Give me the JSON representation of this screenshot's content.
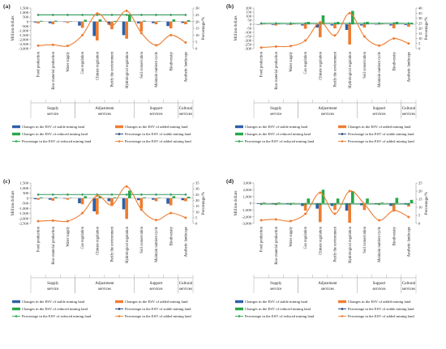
{
  "categories": [
    "Food production",
    "Raw material production",
    "Water supply",
    "Gas regulation",
    "Climate regulation",
    "Purify the environment",
    "Hydrological regulation",
    "Soil conservation",
    "Maintain nutrient cycle",
    "Biodiversity",
    "Aesthetic landscape"
  ],
  "groups": [
    {
      "label": [
        "Supply",
        "service"
      ],
      "span": [
        0,
        2
      ]
    },
    {
      "label": [
        "Adjustment",
        "services"
      ],
      "span": [
        3,
        6
      ]
    },
    {
      "label": [
        "Support",
        "services"
      ],
      "span": [
        7,
        9
      ]
    },
    {
      "label": [
        "Cultural",
        "services"
      ],
      "span": [
        10,
        10
      ]
    }
  ],
  "legend": {
    "stable": "Changes in the ESV of stable mining land",
    "added": "Changes in the ESV of added mining land",
    "reduced": "Changes in the ESV of reduced mining land",
    "pct_stable": "Percentage in the ESV of stable mining land",
    "pct_reduced": "Percentage in the ESV of reduced mining land",
    "pct_added": "Percentage in the ESV of added mining land"
  },
  "colors": {
    "stable": "#2e5fa8",
    "added": "#ee7d31",
    "reduced": "#27a84a",
    "pct_stable": "#1f3f7a"
  },
  "chart_data": [
    {
      "type": "bar",
      "panel_label": "(a)",
      "ylabel": "Million dollars",
      "y2label": "Percentage/%",
      "ylim": [
        -3000,
        1500
      ],
      "y_ticks": [
        -3000,
        -2500,
        -2000,
        -1500,
        -1000,
        -500,
        0,
        500,
        1000,
        1500
      ],
      "y_tick_labels": [
        "-3,000",
        "-2,500",
        "-2,000",
        "-1,500",
        "-1,000",
        "-500",
        "0",
        "500",
        "1,000",
        "1,500"
      ],
      "y2lim": [
        0,
        30
      ],
      "y2_ticks": [
        0,
        5,
        10,
        15,
        20,
        25,
        30
      ],
      "series": [
        {
          "name": "Changes in the ESV of stable mining land",
          "values": [
            -100,
            -180,
            -50,
            -450,
            -1600,
            -350,
            -1500,
            -200,
            -170,
            -500,
            -150
          ]
        },
        {
          "name": "Changes in the ESV of added mining land",
          "values": [
            -200,
            -300,
            -150,
            -700,
            -2100,
            -850,
            -1900,
            -1100,
            -300,
            -750,
            -300
          ]
        },
        {
          "name": "Changes in the ESV of reduced mining land",
          "values": [
            80,
            100,
            40,
            200,
            250,
            80,
            800,
            100,
            50,
            250,
            150
          ]
        },
        {
          "name": "Percentage in the ESV of stable mining land",
          "values": [
            25,
            25,
            25,
            25,
            25,
            25,
            25,
            25,
            25,
            25,
            25
          ]
        },
        {
          "name": "Percentage in the ESV of reduced mining land",
          "values": [
            25,
            25,
            25,
            25,
            25,
            25,
            25,
            25,
            25,
            25,
            25
          ]
        },
        {
          "name": "Percentage in the ESV of added mining land",
          "values": [
            2.2,
            2.8,
            2.0,
            10.0,
            26.0,
            17.0,
            28.0,
            11.5,
            2.5,
            10.0,
            4.5
          ]
        }
      ]
    },
    {
      "type": "bar",
      "panel_label": "(b)",
      "ylabel": "Million dollars",
      "y2label": "Percentage/%",
      "ylim": [
        -300,
        200
      ],
      "y_ticks": [
        -300,
        -250,
        -200,
        -150,
        -100,
        -50,
        0,
        50,
        100,
        150,
        200
      ],
      "y_tick_labels": [
        "-300",
        "-250",
        "-200",
        "-150",
        "-100",
        "-50",
        "0",
        "50",
        "100",
        "150",
        "200"
      ],
      "y2lim": [
        0,
        40
      ],
      "y2_ticks": [
        0,
        5,
        10,
        15,
        20,
        25,
        30,
        35,
        40
      ],
      "series": [
        {
          "name": "Changes in the ESV of stable mining land",
          "values": [
            -5,
            -8,
            -5,
            -15,
            -40,
            -15,
            -70,
            -15,
            -5,
            -15,
            -10
          ]
        },
        {
          "name": "Changes in the ESV of added mining land",
          "values": [
            -5,
            -15,
            -10,
            -55,
            -160,
            -50,
            -250,
            -40,
            -5,
            -50,
            -30
          ]
        },
        {
          "name": "Changes in the ESV of reduced mining land",
          "values": [
            5,
            5,
            5,
            30,
            110,
            30,
            165,
            30,
            5,
            30,
            20
          ]
        },
        {
          "name": "Percentage in the ESV of stable mining land",
          "values": [
            25,
            25,
            25,
            25,
            25,
            25,
            25,
            25,
            25,
            25,
            25
          ]
        },
        {
          "name": "Percentage in the ESV of reduced mining land",
          "values": [
            25,
            25,
            25,
            25,
            25,
            25,
            25,
            25,
            25,
            25,
            25
          ]
        },
        {
          "name": "Percentage in the ESV of added mining land",
          "values": [
            1.0,
            2.0,
            2.5,
            8.0,
            26.0,
            13.0,
            35.0,
            12.0,
            3.0,
            10.0,
            5.0
          ]
        }
      ]
    },
    {
      "type": "bar",
      "panel_label": "(c)",
      "ylabel": "Million dollars",
      "y2label": "Percentage/%",
      "ylim": [
        -2500,
        1500
      ],
      "y_ticks": [
        -2500,
        -2000,
        -1500,
        -1000,
        -500,
        0,
        500,
        1000,
        1500
      ],
      "y_tick_labels": [
        "-2,500",
        "-2,000",
        "-1,500",
        "-1,000",
        "-500",
        "0",
        "500",
        "1,000",
        "1,500"
      ],
      "y2lim": [
        0,
        35
      ],
      "y2_ticks": [
        0,
        5,
        10,
        15,
        20,
        25,
        30,
        35
      ],
      "series": [
        {
          "name": "Changes in the ESV of stable mining land",
          "values": [
            -100,
            -150,
            -50,
            -500,
            -1300,
            -300,
            -1100,
            -200,
            -150,
            -550,
            -200
          ]
        },
        {
          "name": "Changes in the ESV of added mining land",
          "values": [
            -150,
            -250,
            -150,
            -600,
            -1600,
            -700,
            -2050,
            -1000,
            -300,
            -700,
            -300
          ]
        },
        {
          "name": "Changes in the ESV of reduced mining land",
          "values": [
            80,
            100,
            40,
            200,
            200,
            80,
            750,
            80,
            50,
            200,
            150
          ]
        },
        {
          "name": "Percentage in the ESV of stable mining land",
          "values": [
            25,
            25,
            25,
            25,
            25,
            25,
            25,
            25,
            25,
            25,
            25
          ]
        },
        {
          "name": "Percentage in the ESV of reduced mining land",
          "values": [
            25,
            25,
            25,
            25,
            25,
            25,
            25,
            25,
            25,
            25,
            25
          ]
        },
        {
          "name": "Percentage in the ESV of added mining land",
          "values": [
            2.0,
            2.5,
            2.0,
            9.0,
            24.0,
            16.0,
            32.0,
            12.0,
            3.0,
            9.0,
            5.0
          ]
        }
      ]
    },
    {
      "type": "bar",
      "panel_label": "(d)",
      "ylabel": "Million dollars",
      "y2label": "Percentage/%",
      "ylim": [
        -3000,
        3000
      ],
      "y_ticks": [
        -3000,
        -2000,
        -1000,
        0,
        1000,
        2000,
        3000
      ],
      "y_tick_labels": [
        "-3,000",
        "-2,000",
        "-1,000",
        "0",
        "1,000",
        "2,000",
        "3,000"
      ],
      "y2lim": [
        0,
        25
      ],
      "y2_ticks": [
        0,
        5,
        10,
        15,
        20,
        25
      ],
      "series": [
        {
          "name": "Changes in the ESV of stable mining land",
          "values": [
            -100,
            -120,
            -60,
            -400,
            -800,
            -400,
            -1100,
            -300,
            -100,
            -400,
            -200
          ]
        },
        {
          "name": "Changes in the ESV of added mining land",
          "values": [
            -150,
            -250,
            -100,
            -1100,
            -2800,
            -1000,
            -2900,
            -1000,
            -200,
            -1100,
            -500
          ]
        },
        {
          "name": "Changes in the ESV of reduced mining land",
          "values": [
            100,
            100,
            50,
            700,
            2000,
            700,
            1800,
            700,
            100,
            800,
            500
          ]
        },
        {
          "name": "Percentage in the ESV of stable mining land",
          "values": [
            12,
            12,
            12,
            12,
            12,
            12,
            12,
            12,
            12,
            12,
            12
          ]
        },
        {
          "name": "Percentage in the ESV of reduced mining land",
          "values": [
            12,
            12,
            12,
            12,
            12,
            12,
            12,
            12,
            12,
            12,
            12
          ]
        },
        {
          "name": "Percentage in the ESV of added mining land",
          "values": [
            2.0,
            2.5,
            1.5,
            6.0,
            19.0,
            6.0,
            20.0,
            12.0,
            2.0,
            8.0,
            4.0
          ]
        }
      ]
    }
  ]
}
